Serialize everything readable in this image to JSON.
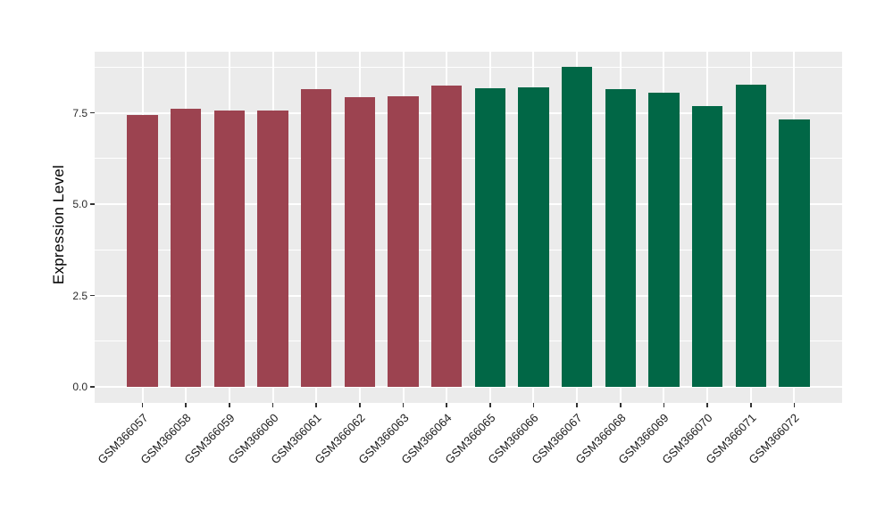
{
  "figure": {
    "background": "#FFFFFF",
    "panel_background": "#EBEBEB",
    "grid_color": "#FFFFFF",
    "tick_color": "#333333",
    "axis_text_color": "#2b2b2b",
    "title_color": "#000000"
  },
  "chart_data": {
    "type": "bar",
    "title": "",
    "xlabel": "",
    "ylabel": "Expression Level",
    "legend": "none",
    "grid": true,
    "categories": [
      "GSM366057",
      "GSM366058",
      "GSM366059",
      "GSM366060",
      "GSM366061",
      "GSM366062",
      "GSM366063",
      "GSM366064",
      "GSM366065",
      "GSM366066",
      "GSM366067",
      "GSM366068",
      "GSM366069",
      "GSM366070",
      "GSM366071",
      "GSM366072"
    ],
    "values": [
      7.44,
      7.61,
      7.56,
      7.55,
      8.15,
      7.93,
      7.95,
      8.24,
      8.17,
      8.2,
      8.76,
      8.14,
      8.05,
      7.68,
      8.28,
      7.32
    ],
    "bar_colors": [
      "#9C4350",
      "#9C4350",
      "#9C4350",
      "#9C4350",
      "#9C4350",
      "#9C4350",
      "#9C4350",
      "#9C4350",
      "#016746",
      "#016746",
      "#016746",
      "#016746",
      "#016746",
      "#016746",
      "#016746",
      "#016746"
    ],
    "color_groups": [
      {
        "color": "#9C4350",
        "samples": "GSM366057-GSM366064"
      },
      {
        "color": "#016746",
        "samples": "GSM366065-GSM366072"
      }
    ],
    "ytick_labels": [
      "0.0",
      "2.5",
      "5.0",
      "7.5"
    ],
    "ytick_values": [
      0,
      2.5,
      5.0,
      7.5
    ],
    "yminor_values": [
      1.25,
      3.75,
      6.25,
      8.75
    ],
    "ylim": [
      -0.44,
      9.17
    ],
    "bar_width_fraction": 0.7,
    "x_label_angle": 45
  }
}
